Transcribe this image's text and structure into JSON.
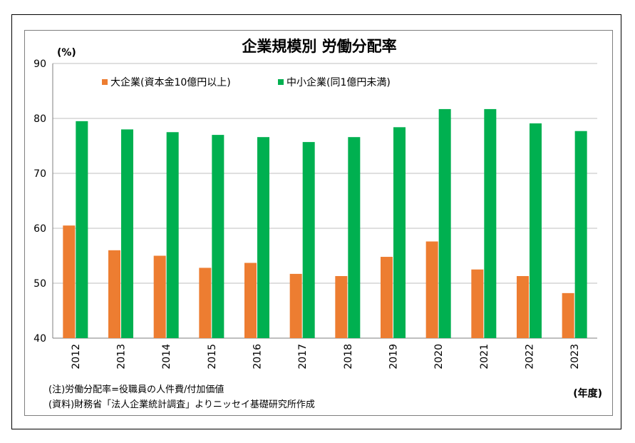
{
  "chart_data": {
    "type": "bar",
    "title": "企業規模別 労働分配率",
    "ylabel": "(%)",
    "xlabel": "(年度)",
    "ylim": [
      40,
      90
    ],
    "yticks": [
      40,
      50,
      60,
      70,
      80,
      90
    ],
    "grid": true,
    "legend_position": "top-left",
    "categories": [
      "2012",
      "2013",
      "2014",
      "2015",
      "2016",
      "2017",
      "2018",
      "2019",
      "2020",
      "2021",
      "2022",
      "2023"
    ],
    "series": [
      {
        "name": "大企業(資本金10億円以上)",
        "color": "#ed7d31",
        "values": [
          60.5,
          56.0,
          55.0,
          52.8,
          53.7,
          51.7,
          51.3,
          54.8,
          57.6,
          52.5,
          51.3,
          48.2
        ]
      },
      {
        "name": "中小企業(同1億円未満)",
        "color": "#00b050",
        "values": [
          79.5,
          78.0,
          77.5,
          77.0,
          76.6,
          75.7,
          76.6,
          78.4,
          81.7,
          81.7,
          79.1,
          77.7
        ]
      }
    ]
  },
  "notes": {
    "note1": "(注)労働分配率=役職員の人件費/付加価値",
    "note2": "(資料)財務省「法人企業統計調査」よりニッセイ基礎研究所作成"
  }
}
